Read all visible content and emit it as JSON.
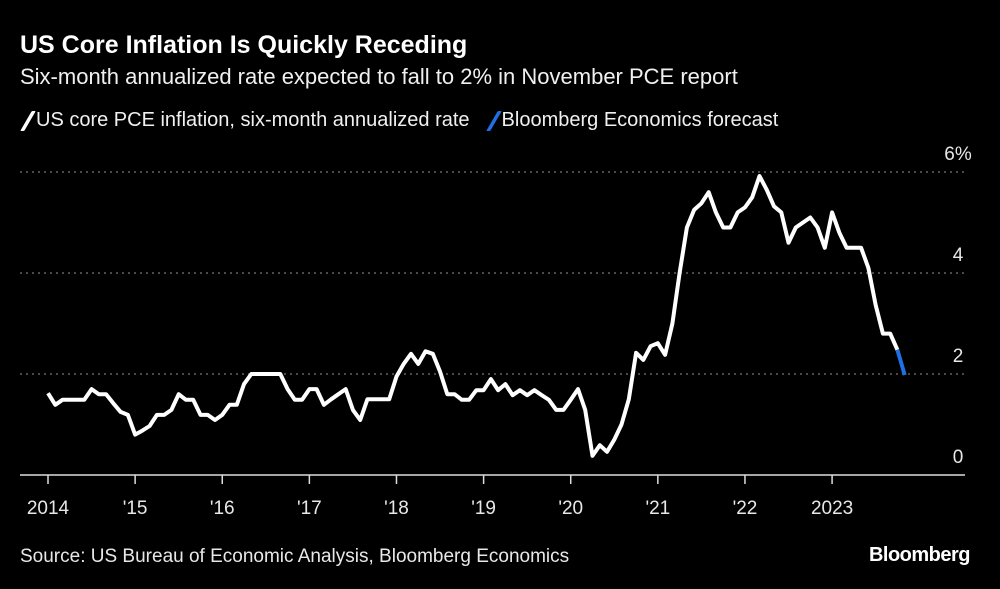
{
  "header": {
    "title": "US Core Inflation Is Quickly Receding",
    "subtitle": "Six-month annualized rate expected to fall to 2% in November PCE report"
  },
  "footer": {
    "source": "Source: US Bureau of Economic Analysis, Bloomberg Economics",
    "logo": "Bloomberg"
  },
  "chart_data": {
    "type": "line",
    "title": "US Core Inflation Is Quickly Receding",
    "subtitle": "Six-month annualized rate expected to fall to 2% in November PCE report",
    "xlabel": "",
    "ylabel": "",
    "ylim": [
      0,
      6
    ],
    "y_ticks": [
      {
        "value": 0,
        "label": "0"
      },
      {
        "value": 2,
        "label": "2"
      },
      {
        "value": 4,
        "label": "4"
      },
      {
        "value": 6,
        "label": "6%"
      }
    ],
    "x_ticks": [
      {
        "date": "2014-01",
        "label": "2014"
      },
      {
        "date": "2015-01",
        "label": "'15"
      },
      {
        "date": "2016-01",
        "label": "'16"
      },
      {
        "date": "2017-01",
        "label": "'17"
      },
      {
        "date": "2018-01",
        "label": "'18"
      },
      {
        "date": "2019-01",
        "label": "'19"
      },
      {
        "date": "2020-01",
        "label": "'20"
      },
      {
        "date": "2021-01",
        "label": "'21"
      },
      {
        "date": "2022-01",
        "label": "'22"
      },
      {
        "date": "2023-01",
        "label": "2023"
      }
    ],
    "grid": "horizontal dotted",
    "y_axis_position": "right",
    "legend_position": "top-left",
    "series": [
      {
        "name": "US core PCE inflation, six-month annualized rate",
        "color": "#ffffff",
        "x": [
          "2014-01",
          "2014-02",
          "2014-03",
          "2014-04",
          "2014-05",
          "2014-06",
          "2014-07",
          "2014-08",
          "2014-09",
          "2014-10",
          "2014-11",
          "2014-12",
          "2015-01",
          "2015-02",
          "2015-03",
          "2015-04",
          "2015-05",
          "2015-06",
          "2015-07",
          "2015-08",
          "2015-09",
          "2015-10",
          "2015-11",
          "2015-12",
          "2016-01",
          "2016-02",
          "2016-03",
          "2016-04",
          "2016-05",
          "2016-06",
          "2016-07",
          "2016-08",
          "2016-09",
          "2016-10",
          "2016-11",
          "2016-12",
          "2017-01",
          "2017-02",
          "2017-03",
          "2017-04",
          "2017-05",
          "2017-06",
          "2017-07",
          "2017-08",
          "2017-09",
          "2017-10",
          "2017-11",
          "2017-12",
          "2018-01",
          "2018-02",
          "2018-03",
          "2018-04",
          "2018-05",
          "2018-06",
          "2018-07",
          "2018-08",
          "2018-09",
          "2018-10",
          "2018-11",
          "2018-12",
          "2019-01",
          "2019-02",
          "2019-03",
          "2019-04",
          "2019-05",
          "2019-06",
          "2019-07",
          "2019-08",
          "2019-09",
          "2019-10",
          "2019-11",
          "2019-12",
          "2020-01",
          "2020-02",
          "2020-03",
          "2020-04",
          "2020-05",
          "2020-06",
          "2020-07",
          "2020-08",
          "2020-09",
          "2020-10",
          "2020-11",
          "2020-12",
          "2021-01",
          "2021-02",
          "2021-03",
          "2021-04",
          "2021-05",
          "2021-06",
          "2021-07",
          "2021-08",
          "2021-09",
          "2021-10",
          "2021-11",
          "2021-12",
          "2022-01",
          "2022-02",
          "2022-03",
          "2022-04",
          "2022-05",
          "2022-06",
          "2022-07",
          "2022-08",
          "2022-09",
          "2022-10",
          "2022-11",
          "2022-12",
          "2023-01",
          "2023-02",
          "2023-03",
          "2023-04",
          "2023-05",
          "2023-06",
          "2023-07",
          "2023-08",
          "2023-09",
          "2023-10"
        ],
        "values": [
          1.62,
          1.39,
          1.49,
          1.49,
          1.49,
          1.49,
          1.7,
          1.6,
          1.6,
          1.42,
          1.25,
          1.19,
          0.8,
          0.88,
          0.97,
          1.19,
          1.19,
          1.29,
          1.6,
          1.49,
          1.49,
          1.19,
          1.19,
          1.09,
          1.19,
          1.39,
          1.39,
          1.8,
          2.0,
          2.0,
          2.0,
          2.0,
          2.0,
          1.7,
          1.49,
          1.49,
          1.7,
          1.7,
          1.39,
          1.5,
          1.6,
          1.7,
          1.29,
          1.09,
          1.5,
          1.5,
          1.5,
          1.5,
          1.95,
          2.2,
          2.4,
          2.2,
          2.45,
          2.4,
          2.05,
          1.6,
          1.6,
          1.49,
          1.49,
          1.68,
          1.68,
          1.9,
          1.68,
          1.8,
          1.58,
          1.68,
          1.58,
          1.68,
          1.58,
          1.49,
          1.29,
          1.29,
          1.49,
          1.7,
          1.29,
          0.38,
          0.59,
          0.46,
          0.7,
          1.0,
          1.5,
          2.42,
          2.28,
          2.55,
          2.61,
          2.38,
          3.0,
          4.0,
          4.9,
          5.25,
          5.38,
          5.6,
          5.2,
          4.9,
          4.9,
          5.2,
          5.3,
          5.5,
          5.92,
          5.65,
          5.32,
          5.2,
          4.6,
          4.9,
          5.0,
          5.1,
          4.9,
          4.5,
          5.2,
          4.8,
          4.5,
          4.5,
          4.5,
          4.1,
          3.37,
          2.8,
          2.8,
          2.48
        ]
      },
      {
        "name": "Bloomberg Economics forecast",
        "color": "#1f6fe5",
        "x": [
          "2023-10",
          "2023-11"
        ],
        "values": [
          2.48,
          1.98
        ]
      }
    ]
  }
}
